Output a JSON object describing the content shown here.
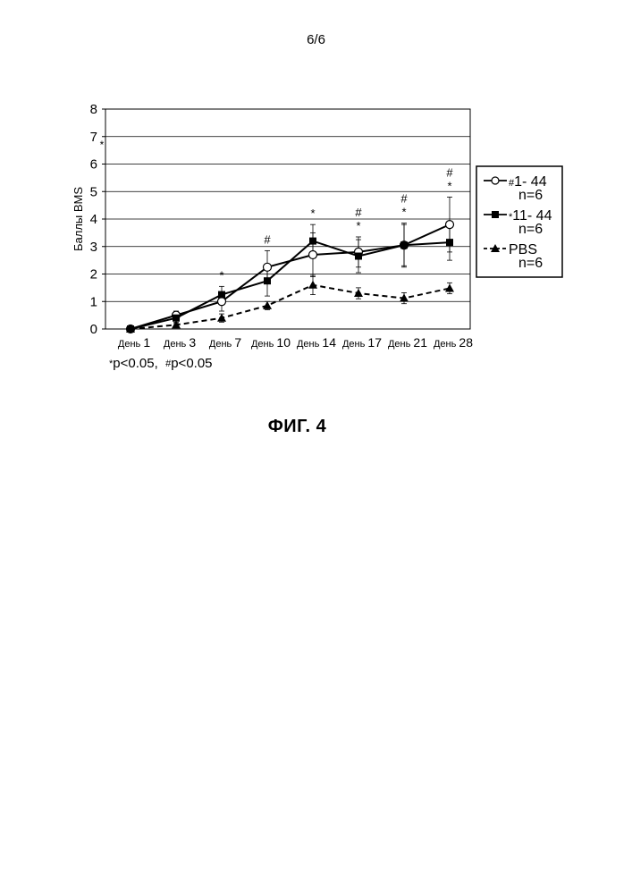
{
  "page_number": "6/6",
  "figure_caption": "ФИГ. 4",
  "significance_note": {
    "star_symbol": "*",
    "star_text": "p<0.05,",
    "hash_symbol": "#",
    "hash_text": "p<0.05"
  },
  "chart_data": {
    "type": "line",
    "ylabel": "Баллы BMS",
    "xlabel": "",
    "title": "",
    "ylim": [
      0,
      8
    ],
    "yticks": [
      "0",
      "1",
      "2",
      "3",
      "4",
      "5",
      "6",
      "7",
      "8"
    ],
    "categories": [
      "День 1",
      "День 3",
      "День 7",
      "День 10",
      "День 14",
      "День 17",
      "День 21",
      "День 28"
    ],
    "grid": "horizontal",
    "legend_position": "right",
    "stray_mark": "*",
    "series": [
      {
        "name": "1- 44",
        "name_mark": "#",
        "count_label": "n=6",
        "marker": "circle-open",
        "line": "solid",
        "color": "#000000",
        "values": [
          0,
          0.5,
          1.0,
          2.25,
          2.7,
          2.8,
          3.05,
          3.8
        ],
        "errors": [
          0,
          0.15,
          0.35,
          0.6,
          0.8,
          0.55,
          0.8,
          1.0
        ]
      },
      {
        "name": "11- 44",
        "name_mark": "*",
        "count_label": "n=6",
        "marker": "square-filled",
        "line": "solid",
        "color": "#000000",
        "values": [
          0,
          0.4,
          1.25,
          1.75,
          3.2,
          2.65,
          3.05,
          3.15
        ],
        "errors": [
          0,
          0.15,
          0.3,
          0.55,
          0.6,
          0.6,
          0.75,
          0.65
        ]
      },
      {
        "name": "PBS",
        "name_mark": "",
        "count_label": "n=6",
        "marker": "triangle-filled",
        "line": "dashed",
        "color": "#000000",
        "values": [
          0,
          0.15,
          0.4,
          0.85,
          1.6,
          1.3,
          1.12,
          1.48
        ],
        "errors": [
          0,
          0.05,
          0.15,
          0.15,
          0.35,
          0.2,
          0.2,
          0.2
        ]
      }
    ],
    "annotations": [
      {
        "category": "День 7",
        "marks": [
          "*"
        ]
      },
      {
        "category": "День 10",
        "marks": [
          "#"
        ]
      },
      {
        "category": "День 14",
        "marks": [
          "*"
        ]
      },
      {
        "category": "День 17",
        "marks": [
          "#",
          "*"
        ]
      },
      {
        "category": "День 21",
        "marks": [
          "#",
          "*"
        ]
      },
      {
        "category": "День 28",
        "marks": [
          "#",
          "*"
        ]
      }
    ]
  }
}
